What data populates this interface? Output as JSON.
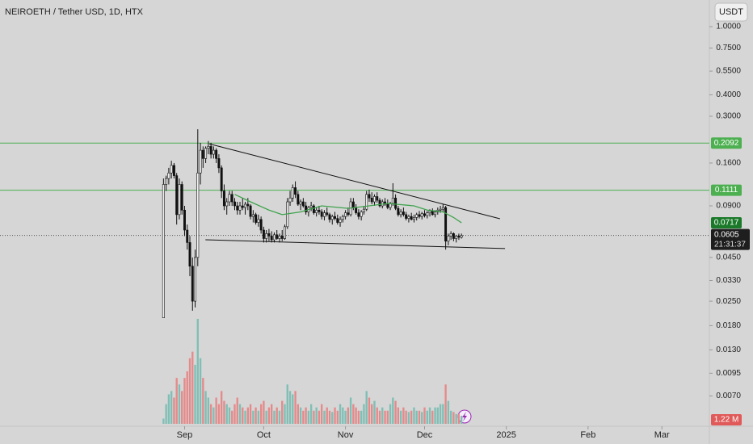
{
  "chart_data": {
    "type": "candlestick",
    "title": "NEIROETH / Tether USD, 1D, HTX",
    "currency_button": "USDT",
    "log_scale": true,
    "ylim": [
      0.00466,
      1.43
    ],
    "yticks": [
      {
        "value": 1,
        "label": "1.0000"
      },
      {
        "value": 0.75,
        "label": "0.7500"
      },
      {
        "value": 0.55,
        "label": "0.5500"
      },
      {
        "value": 0.4,
        "label": "0.4000"
      },
      {
        "value": 0.3,
        "label": "0.3000"
      },
      {
        "value": 0.16,
        "label": "0.1600"
      },
      {
        "value": 0.09,
        "label": "0.0900"
      },
      {
        "value": 0.045,
        "label": "0.0450"
      },
      {
        "value": 0.033,
        "label": "0.0330"
      },
      {
        "value": 0.025,
        "label": "0.0250"
      },
      {
        "value": 0.018,
        "label": "0.0180"
      },
      {
        "value": 0.013,
        "label": "0.0130"
      },
      {
        "value": 0.0095,
        "label": "0.0095"
      },
      {
        "value": 0.007,
        "label": "0.0070"
      }
    ],
    "xlim": [
      -62,
      207
    ],
    "xticks": [
      {
        "value": 8,
        "label": "Sep"
      },
      {
        "value": 38,
        "label": "Oct"
      },
      {
        "value": 69,
        "label": "Nov"
      },
      {
        "value": 99,
        "label": "Dec"
      },
      {
        "value": 130,
        "label": "2025"
      },
      {
        "value": 161,
        "label": "Feb"
      },
      {
        "value": 189,
        "label": "Mar"
      }
    ],
    "up_color": "#f4f4f4",
    "down_color": "#111111",
    "volume_up_color": "#7fbfb5",
    "volume_down_color": "#e58a8a",
    "candles": [
      [
        0.02,
        0.13,
        0.02,
        0.12
      ],
      [
        0.12,
        0.135,
        0.11,
        0.13
      ],
      [
        0.13,
        0.15,
        0.12,
        0.14
      ],
      [
        0.14,
        0.165,
        0.13,
        0.155
      ],
      [
        0.155,
        0.16,
        0.13,
        0.135
      ],
      [
        0.135,
        0.14,
        0.07,
        0.08
      ],
      [
        0.08,
        0.13,
        0.075,
        0.12
      ],
      [
        0.12,
        0.125,
        0.08,
        0.085
      ],
      [
        0.085,
        0.09,
        0.06,
        0.065
      ],
      [
        0.065,
        0.07,
        0.05,
        0.055
      ],
      [
        0.055,
        0.06,
        0.035,
        0.04
      ],
      [
        0.04,
        0.045,
        0.022,
        0.025
      ],
      [
        0.025,
        0.05,
        0.023,
        0.045
      ],
      [
        0.045,
        0.252,
        0.04,
        0.14
      ],
      [
        0.14,
        0.21,
        0.12,
        0.19
      ],
      [
        0.19,
        0.2,
        0.15,
        0.17
      ],
      [
        0.17,
        0.2,
        0.16,
        0.195
      ],
      [
        0.195,
        0.215,
        0.18,
        0.2
      ],
      [
        0.2,
        0.21,
        0.17,
        0.18
      ],
      [
        0.18,
        0.2,
        0.17,
        0.19
      ],
      [
        0.19,
        0.195,
        0.16,
        0.17
      ],
      [
        0.17,
        0.18,
        0.14,
        0.15
      ],
      [
        0.15,
        0.155,
        0.1,
        0.11
      ],
      [
        0.11,
        0.12,
        0.085,
        0.09
      ],
      [
        0.09,
        0.1,
        0.08,
        0.095
      ],
      [
        0.095,
        0.11,
        0.09,
        0.105
      ],
      [
        0.105,
        0.11,
        0.09,
        0.095
      ],
      [
        0.095,
        0.1,
        0.085,
        0.09
      ],
      [
        0.09,
        0.095,
        0.08,
        0.085
      ],
      [
        0.085,
        0.095,
        0.08,
        0.09
      ],
      [
        0.09,
        0.1,
        0.085,
        0.088
      ],
      [
        0.088,
        0.095,
        0.08,
        0.092
      ],
      [
        0.092,
        0.1,
        0.085,
        0.09
      ],
      [
        0.09,
        0.092,
        0.075,
        0.078
      ],
      [
        0.078,
        0.085,
        0.072,
        0.08
      ],
      [
        0.08,
        0.082,
        0.07,
        0.072
      ],
      [
        0.072,
        0.08,
        0.068,
        0.075
      ],
      [
        0.075,
        0.078,
        0.062,
        0.065
      ],
      [
        0.065,
        0.068,
        0.055,
        0.058
      ],
      [
        0.058,
        0.065,
        0.055,
        0.062
      ],
      [
        0.062,
        0.066,
        0.056,
        0.06
      ],
      [
        0.06,
        0.064,
        0.055,
        0.057
      ],
      [
        0.057,
        0.063,
        0.055,
        0.061
      ],
      [
        0.061,
        0.065,
        0.057,
        0.058
      ],
      [
        0.058,
        0.062,
        0.055,
        0.06
      ],
      [
        0.06,
        0.065,
        0.056,
        0.058
      ],
      [
        0.058,
        0.07,
        0.057,
        0.068
      ],
      [
        0.068,
        0.1,
        0.066,
        0.095
      ],
      [
        0.095,
        0.11,
        0.09,
        0.1
      ],
      [
        0.1,
        0.12,
        0.095,
        0.115
      ],
      [
        0.115,
        0.125,
        0.1,
        0.105
      ],
      [
        0.105,
        0.11,
        0.09,
        0.092
      ],
      [
        0.092,
        0.098,
        0.085,
        0.095
      ],
      [
        0.095,
        0.1,
        0.088,
        0.09
      ],
      [
        0.09,
        0.095,
        0.08,
        0.083
      ],
      [
        0.083,
        0.09,
        0.078,
        0.088
      ],
      [
        0.088,
        0.095,
        0.084,
        0.09
      ],
      [
        0.09,
        0.092,
        0.08,
        0.082
      ],
      [
        0.082,
        0.088,
        0.078,
        0.085
      ],
      [
        0.085,
        0.09,
        0.08,
        0.083
      ],
      [
        0.083,
        0.086,
        0.075,
        0.078
      ],
      [
        0.078,
        0.085,
        0.074,
        0.082
      ],
      [
        0.082,
        0.088,
        0.078,
        0.08
      ],
      [
        0.08,
        0.082,
        0.072,
        0.075
      ],
      [
        0.075,
        0.08,
        0.07,
        0.078
      ],
      [
        0.078,
        0.083,
        0.074,
        0.076
      ],
      [
        0.076,
        0.08,
        0.07,
        0.072
      ],
      [
        0.072,
        0.078,
        0.068,
        0.075
      ],
      [
        0.075,
        0.08,
        0.072,
        0.078
      ],
      [
        0.078,
        0.085,
        0.075,
        0.082
      ],
      [
        0.082,
        0.088,
        0.078,
        0.08
      ],
      [
        0.08,
        0.1,
        0.078,
        0.095
      ],
      [
        0.095,
        0.1,
        0.085,
        0.088
      ],
      [
        0.088,
        0.092,
        0.08,
        0.082
      ],
      [
        0.082,
        0.086,
        0.075,
        0.078
      ],
      [
        0.078,
        0.085,
        0.074,
        0.083
      ],
      [
        0.083,
        0.09,
        0.08,
        0.086
      ],
      [
        0.086,
        0.11,
        0.084,
        0.105
      ],
      [
        0.105,
        0.112,
        0.095,
        0.1
      ],
      [
        0.1,
        0.108,
        0.092,
        0.095
      ],
      [
        0.095,
        0.105,
        0.09,
        0.102
      ],
      [
        0.102,
        0.108,
        0.094,
        0.097
      ],
      [
        0.097,
        0.1,
        0.088,
        0.09
      ],
      [
        0.09,
        0.098,
        0.087,
        0.095
      ],
      [
        0.095,
        0.1,
        0.09,
        0.092
      ],
      [
        0.092,
        0.098,
        0.086,
        0.088
      ],
      [
        0.088,
        0.095,
        0.085,
        0.093
      ],
      [
        0.093,
        0.122,
        0.09,
        0.1
      ],
      [
        0.1,
        0.105,
        0.085,
        0.087
      ],
      [
        0.087,
        0.09,
        0.078,
        0.08
      ],
      [
        0.08,
        0.086,
        0.077,
        0.083
      ],
      [
        0.083,
        0.088,
        0.078,
        0.08
      ],
      [
        0.08,
        0.083,
        0.074,
        0.076
      ],
      [
        0.076,
        0.08,
        0.072,
        0.078
      ],
      [
        0.078,
        0.082,
        0.074,
        0.075
      ],
      [
        0.075,
        0.08,
        0.072,
        0.077
      ],
      [
        0.077,
        0.082,
        0.074,
        0.08
      ],
      [
        0.08,
        0.084,
        0.076,
        0.078
      ],
      [
        0.078,
        0.083,
        0.075,
        0.081
      ],
      [
        0.081,
        0.085,
        0.077,
        0.079
      ],
      [
        0.079,
        0.084,
        0.076,
        0.082
      ],
      [
        0.082,
        0.086,
        0.078,
        0.084
      ],
      [
        0.084,
        0.087,
        0.079,
        0.08
      ],
      [
        0.08,
        0.085,
        0.077,
        0.083
      ],
      [
        0.083,
        0.088,
        0.08,
        0.085
      ],
      [
        0.085,
        0.09,
        0.082,
        0.086
      ],
      [
        0.086,
        0.092,
        0.083,
        0.088
      ],
      [
        0.088,
        0.09,
        0.05,
        0.056
      ],
      [
        0.056,
        0.062,
        0.053,
        0.06
      ],
      [
        0.06,
        0.064,
        0.057,
        0.062
      ],
      [
        0.062,
        0.063,
        0.056,
        0.058
      ],
      [
        0.058,
        0.061,
        0.055,
        0.06
      ],
      [
        0.06,
        0.062,
        0.057,
        0.059
      ],
      [
        0.059,
        0.062,
        0.058,
        0.0605
      ]
    ],
    "volume": [
      0.8,
      3,
      4.5,
      5,
      4,
      7,
      6,
      5,
      7,
      8,
      10,
      11,
      9,
      16,
      10,
      7,
      5,
      4,
      3,
      2.5,
      4,
      3,
      5,
      3.5,
      3,
      2.5,
      2,
      3,
      4,
      3,
      2.5,
      2,
      2.5,
      3,
      2,
      2.5,
      2,
      3,
      3.5,
      2,
      2.5,
      3,
      2,
      2.5,
      2,
      3.5,
      3,
      6,
      5,
      4.5,
      5,
      3,
      2.5,
      2,
      2.5,
      2,
      3,
      2,
      2.5,
      2,
      3,
      2,
      2.5,
      2,
      1.8,
      2.5,
      2,
      3,
      2.5,
      2,
      2.5,
      4,
      3,
      2.5,
      2,
      2,
      3,
      5,
      4,
      3,
      3.5,
      2.5,
      2,
      2.5,
      2,
      2,
      3,
      4,
      3.5,
      2.5,
      2,
      2.5,
      2,
      1.8,
      2,
      2.5,
      2,
      2,
      1.8,
      2.5,
      2,
      2.5,
      2,
      2.5,
      2.5,
      3,
      3,
      6,
      3.5,
      2,
      1.8,
      1.5,
      1.5,
      1.22
    ],
    "volume_last_label": "1.22 M",
    "ma": {
      "color": "#3fa34d",
      "x": [
        27,
        33,
        40,
        45,
        52,
        60,
        70,
        78,
        85,
        95,
        100,
        106,
        110,
        113
      ],
      "values": [
        0.105,
        0.095,
        0.085,
        0.08,
        0.083,
        0.09,
        0.087,
        0.09,
        0.093,
        0.09,
        0.085,
        0.083,
        0.077,
        0.0717
      ]
    },
    "levels": [
      {
        "value": 0.2092,
        "color": "#4caf50"
      },
      {
        "value": 0.1111,
        "color": "#4caf50"
      }
    ],
    "trendlines": [
      {
        "x": [
          17.4,
          127.6
        ],
        "values": [
          0.207,
          0.0757
        ]
      },
      {
        "x": [
          15.9,
          129.5
        ],
        "values": [
          0.0571,
          0.0507
        ]
      }
    ],
    "last_price": 0.0605,
    "countdown": "21:31:37"
  }
}
